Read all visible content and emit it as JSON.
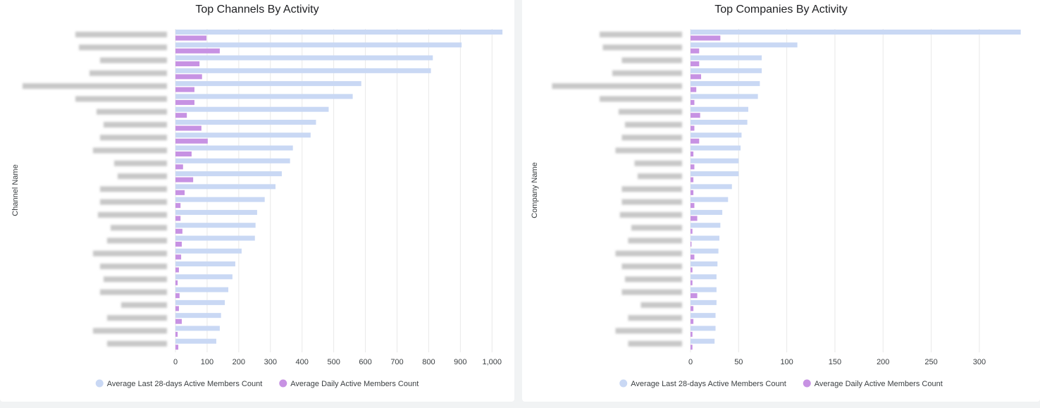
{
  "chart_data": [
    {
      "type": "bar",
      "orientation": "horizontal",
      "title": "Top Channels By Activity",
      "y_label": "Channel Name",
      "categories": [
        null,
        null,
        null,
        null,
        null,
        null,
        null,
        null,
        null,
        null,
        null,
        null,
        null,
        null,
        null,
        null,
        null,
        null,
        null,
        null,
        null,
        null,
        null,
        null,
        null
      ],
      "series": [
        {
          "name": "Average Last 28-days Active Members Count",
          "color": "#c9d8f4",
          "values": [
            1033,
            904,
            813,
            807,
            587,
            560,
            484,
            444,
            427,
            371,
            362,
            336,
            316,
            282,
            258,
            253,
            251,
            209,
            189,
            180,
            167,
            156,
            144,
            140,
            129
          ]
        },
        {
          "name": "Average Daily Active Members Count",
          "color": "#c792e3",
          "values": [
            98,
            140,
            76,
            84,
            60,
            60,
            36,
            82,
            102,
            51,
            24,
            56,
            29,
            16,
            16,
            22,
            20,
            18,
            11,
            7,
            13,
            11,
            20,
            7,
            9
          ]
        }
      ],
      "xlim": [
        0,
        1035
      ],
      "xticks": [
        0,
        100,
        200,
        300,
        400,
        500,
        600,
        700,
        800,
        900,
        {
          "value": 1000,
          "label": "1,000"
        }
      ],
      "grid": true
    },
    {
      "type": "bar",
      "orientation": "horizontal",
      "title": "Top Companies By Activity",
      "y_label": "Company Name",
      "categories": [
        null,
        null,
        null,
        null,
        null,
        null,
        null,
        null,
        null,
        null,
        null,
        null,
        null,
        null,
        null,
        null,
        null,
        null,
        null,
        null,
        null,
        null,
        null,
        null,
        null
      ],
      "series": [
        {
          "name": "Average Last 28-days Active Members Count",
          "color": "#c9d8f4",
          "values": [
            343,
            111,
            74,
            74,
            72,
            70,
            60,
            59,
            53,
            52,
            50,
            50,
            43,
            39,
            33,
            31,
            30,
            29,
            28,
            27,
            27,
            27,
            26,
            26,
            25
          ]
        },
        {
          "name": "Average Daily Active Members Count",
          "color": "#c792e3",
          "values": [
            31,
            9,
            9,
            11,
            6,
            4,
            10,
            4,
            9,
            3,
            4,
            3,
            3,
            4,
            7,
            2,
            1,
            4,
            2,
            2,
            7,
            3,
            3,
            2,
            2
          ]
        }
      ],
      "xlim": [
        0,
        344
      ],
      "xticks": [
        0,
        50,
        100,
        150,
        200,
        250,
        300
      ],
      "grid": true
    }
  ]
}
